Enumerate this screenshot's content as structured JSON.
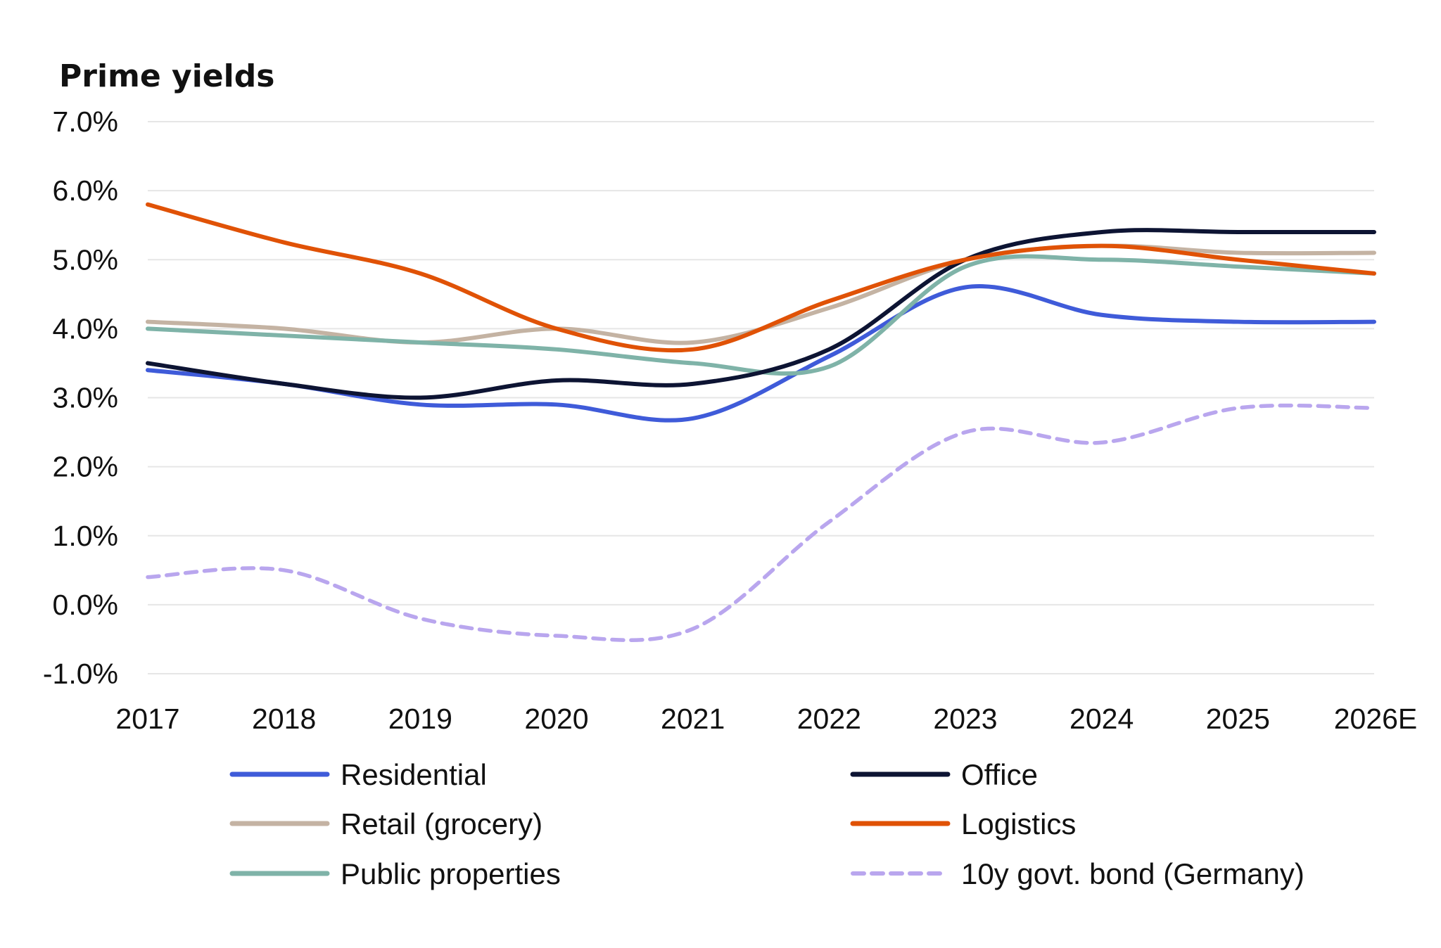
{
  "chart_data": {
    "type": "line",
    "title": "Prime yields",
    "xlabel": "",
    "ylabel": "",
    "categories": [
      "2017",
      "2018",
      "2019",
      "2020",
      "2021",
      "2022",
      "2023",
      "2024",
      "2025",
      "2026E"
    ],
    "ylim": [
      -1.0,
      7.0
    ],
    "yticks": [
      7.0,
      6.0,
      5.0,
      4.0,
      3.0,
      2.0,
      1.0,
      0.0,
      -1.0
    ],
    "ytick_labels": [
      "7.0%",
      "6.0%",
      "5.0%",
      "4.0%",
      "3.0%",
      "2.0%",
      "1.0%",
      "0.0%",
      "-1.0%"
    ],
    "grid": true,
    "legend_position": "bottom",
    "series": [
      {
        "name": "Residential",
        "color": "#3f5bd9",
        "dash": false,
        "values": [
          3.4,
          3.2,
          2.9,
          2.9,
          2.7,
          3.6,
          4.6,
          4.2,
          4.1,
          4.1
        ]
      },
      {
        "name": "Office",
        "color": "#0d1433",
        "dash": false,
        "values": [
          3.5,
          3.2,
          3.0,
          3.25,
          3.2,
          3.7,
          5.0,
          5.4,
          5.4,
          5.4
        ]
      },
      {
        "name": "Retail (grocery)",
        "color": "#c4b3a3",
        "dash": false,
        "values": [
          4.1,
          4.0,
          3.8,
          4.0,
          3.8,
          4.3,
          5.0,
          5.2,
          5.1,
          5.1
        ]
      },
      {
        "name": "Logistics",
        "color": "#e05206",
        "dash": false,
        "values": [
          5.8,
          5.25,
          4.8,
          4.0,
          3.7,
          4.4,
          5.0,
          5.2,
          5.0,
          4.8
        ]
      },
      {
        "name": "Public properties",
        "color": "#7fb3a8",
        "dash": false,
        "values": [
          4.0,
          3.9,
          3.8,
          3.7,
          3.5,
          3.45,
          4.9,
          5.0,
          4.9,
          4.8
        ]
      },
      {
        "name": "10y govt. bond (Germany)",
        "color": "#b9a6ee",
        "dash": true,
        "values": [
          0.4,
          0.5,
          -0.2,
          -0.45,
          -0.35,
          1.2,
          2.5,
          2.35,
          2.85,
          2.85
        ]
      }
    ]
  }
}
